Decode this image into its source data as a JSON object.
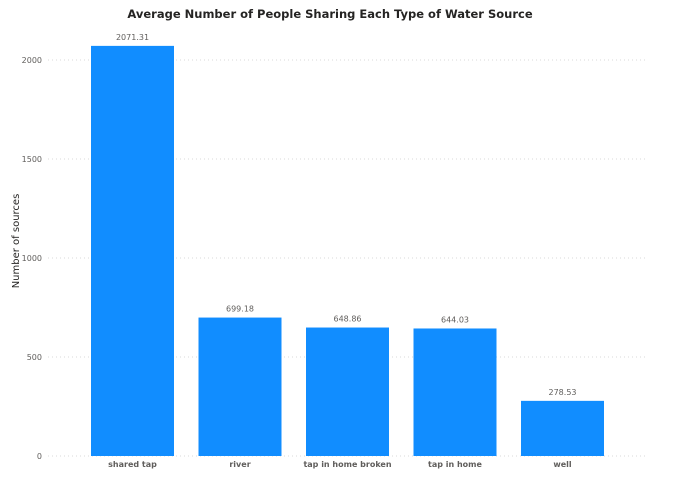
{
  "chart_data": {
    "type": "bar",
    "title": "Average Number of People Sharing Each Type of Water Source",
    "xlabel": "",
    "ylabel": "Number of sources",
    "categories": [
      "shared tap",
      "river",
      "tap in home broken",
      "tap in home",
      "well"
    ],
    "values": [
      2071.31,
      699.18,
      648.86,
      644.03,
      278.53
    ],
    "value_labels": [
      "2071.31",
      "699.18",
      "648.86",
      "644.03",
      "278.53"
    ],
    "yticks": [
      0,
      500,
      1000,
      1500,
      2000
    ],
    "ylim": [
      0,
      2100
    ],
    "grid": true,
    "bar_color": "#118DFF"
  }
}
